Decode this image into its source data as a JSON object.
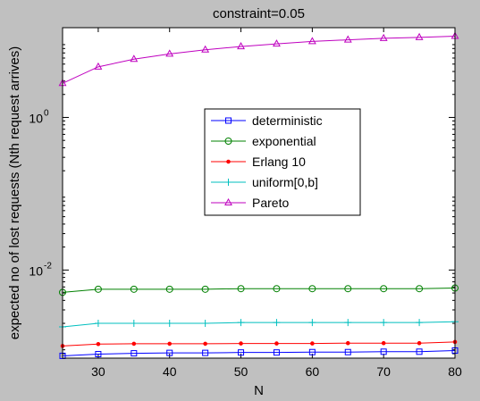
{
  "chart_data": {
    "type": "line",
    "title": "constraint=0.05",
    "xlabel": "N",
    "ylabel": "expected no of lost requests (Nth request arrives)",
    "yscale": "log",
    "xlim": [
      25,
      80
    ],
    "ylim": [
      0.0007,
      15
    ],
    "x": [
      25,
      30,
      35,
      40,
      45,
      50,
      55,
      60,
      65,
      70,
      75,
      80
    ],
    "xticks": [
      30,
      40,
      50,
      60,
      70,
      80
    ],
    "yticks": [
      {
        "value": 1,
        "base": "10",
        "exp": "0"
      },
      {
        "value": 0.01,
        "base": "10",
        "exp": "-2"
      }
    ],
    "grid": false,
    "legend_position": "center",
    "series": [
      {
        "name": "deterministic",
        "color": "#0000ff",
        "marker": "square",
        "values": [
          0.00075,
          0.00079,
          0.00081,
          0.00082,
          0.00082,
          0.00083,
          0.00083,
          0.00084,
          0.00084,
          0.00085,
          0.00085,
          0.00088
        ]
      },
      {
        "name": "exponential",
        "color": "#008000",
        "marker": "circle",
        "values": [
          0.0051,
          0.0056,
          0.0056,
          0.0056,
          0.0056,
          0.0057,
          0.0057,
          0.0057,
          0.0057,
          0.0057,
          0.0057,
          0.0058
        ]
      },
      {
        "name": "Erlang 10",
        "color": "#ff0000",
        "marker": "dot",
        "values": [
          0.00101,
          0.00107,
          0.00108,
          0.00108,
          0.00108,
          0.00109,
          0.00109,
          0.00109,
          0.0011,
          0.0011,
          0.0011,
          0.00114
        ]
      },
      {
        "name": "uniform[0,b]",
        "color": "#00bfbf",
        "marker": "plus",
        "values": [
          0.0018,
          0.002,
          0.002,
          0.002,
          0.002,
          0.00205,
          0.00205,
          0.00205,
          0.00205,
          0.00205,
          0.00205,
          0.0021
        ]
      },
      {
        "name": "Pareto",
        "color": "#bf00bf",
        "marker": "triangle",
        "values": [
          2.8,
          4.6,
          5.8,
          6.8,
          7.7,
          8.5,
          9.2,
          9.9,
          10.4,
          10.9,
          11.2,
          11.6
        ]
      }
    ]
  }
}
